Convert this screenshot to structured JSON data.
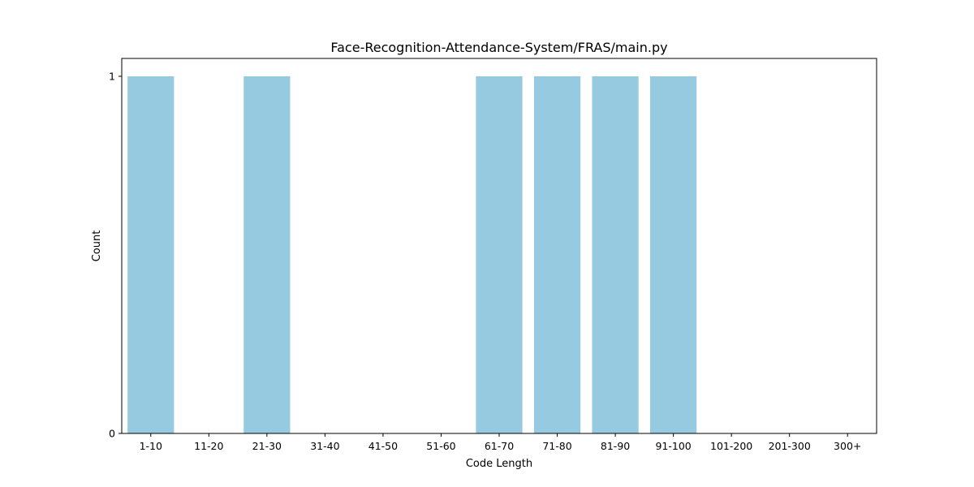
{
  "chart_data": {
    "type": "bar",
    "title": "Face-Recognition-Attendance-System/FRAS/main.py",
    "xlabel": "Code Length",
    "ylabel": "Count",
    "categories": [
      "1-10",
      "11-20",
      "21-30",
      "31-40",
      "41-50",
      "51-60",
      "61-70",
      "71-80",
      "81-90",
      "91-100",
      "101-200",
      "201-300",
      "300+"
    ],
    "values": [
      1,
      0,
      1,
      0,
      0,
      0,
      1,
      1,
      1,
      1,
      0,
      0,
      0
    ],
    "ylim": [
      0,
      1.05
    ],
    "yticks": [
      0,
      1
    ],
    "bar_color": "#96CAE0",
    "grid": false,
    "legend": "none"
  }
}
